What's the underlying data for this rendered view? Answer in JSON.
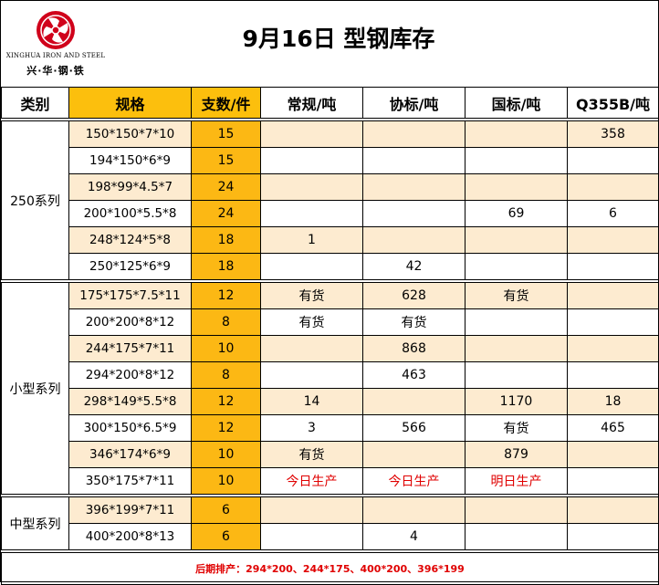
{
  "logo": {
    "company_en": "XINGHUA IRON AND STEEL",
    "company_cn": "兴·华·钢·铁",
    "brand_color": "#d0021b"
  },
  "title": "9月16日 型钢库存",
  "columns": [
    "类别",
    "规格",
    "支数/件",
    "常规/吨",
    "协标/吨",
    "国标/吨",
    "Q355B/吨"
  ],
  "groups": [
    {
      "category": "250系列",
      "rows": [
        {
          "spec": "150*150*7*10",
          "qty": "15",
          "regular": "",
          "assoc": "",
          "national": "",
          "q355b": "358"
        },
        {
          "spec": "194*150*6*9",
          "qty": "15",
          "regular": "",
          "assoc": "",
          "national": "",
          "q355b": ""
        },
        {
          "spec": "198*99*4.5*7",
          "qty": "24",
          "regular": "",
          "assoc": "",
          "national": "",
          "q355b": ""
        },
        {
          "spec": "200*100*5.5*8",
          "qty": "24",
          "regular": "",
          "assoc": "",
          "national": "69",
          "q355b": "6"
        },
        {
          "spec": "248*124*5*8",
          "qty": "18",
          "regular": "1",
          "assoc": "",
          "national": "",
          "q355b": ""
        },
        {
          "spec": "250*125*6*9",
          "qty": "18",
          "regular": "",
          "assoc": "42",
          "national": "",
          "q355b": ""
        }
      ]
    },
    {
      "category": "小型系列",
      "rows": [
        {
          "spec": "175*175*7.5*11",
          "qty": "12",
          "regular": "有货",
          "assoc": "628",
          "national": "有货",
          "q355b": ""
        },
        {
          "spec": "200*200*8*12",
          "qty": "8",
          "regular": "有货",
          "assoc": "有货",
          "national": "",
          "q355b": ""
        },
        {
          "spec": "244*175*7*11",
          "qty": "10",
          "regular": "",
          "assoc": "868",
          "national": "",
          "q355b": ""
        },
        {
          "spec": "294*200*8*12",
          "qty": "8",
          "regular": "",
          "assoc": "463",
          "national": "",
          "q355b": ""
        },
        {
          "spec": "298*149*5.5*8",
          "qty": "12",
          "regular": "14",
          "assoc": "",
          "national": "1170",
          "q355b": "18"
        },
        {
          "spec": "300*150*6.5*9",
          "qty": "12",
          "regular": "3",
          "assoc": "566",
          "national": "有货",
          "q355b": "465"
        },
        {
          "spec": "346*174*6*9",
          "qty": "10",
          "regular": "有货",
          "assoc": "",
          "national": "879",
          "q355b": ""
        },
        {
          "spec": "350*175*7*11",
          "qty": "10",
          "regular": "今日生产",
          "assoc": "今日生产",
          "national": "明日生产",
          "q355b": ""
        }
      ]
    },
    {
      "category": "中型系列",
      "rows": [
        {
          "spec": "396*199*7*11",
          "qty": "6",
          "regular": "",
          "assoc": "",
          "national": "",
          "q355b": ""
        },
        {
          "spec": "400*200*8*13",
          "qty": "6",
          "regular": "",
          "assoc": "4",
          "national": "",
          "q355b": ""
        }
      ]
    }
  ],
  "red_values": [
    "今日生产",
    "明日生产"
  ],
  "footer": "后期排产：294*200、244*175、400*200、396*199",
  "colors": {
    "header_orange": "#fcbf0d",
    "qty_orange": "#fcb814",
    "alt_row": "#fdebd0",
    "alert_red": "#e00000"
  }
}
